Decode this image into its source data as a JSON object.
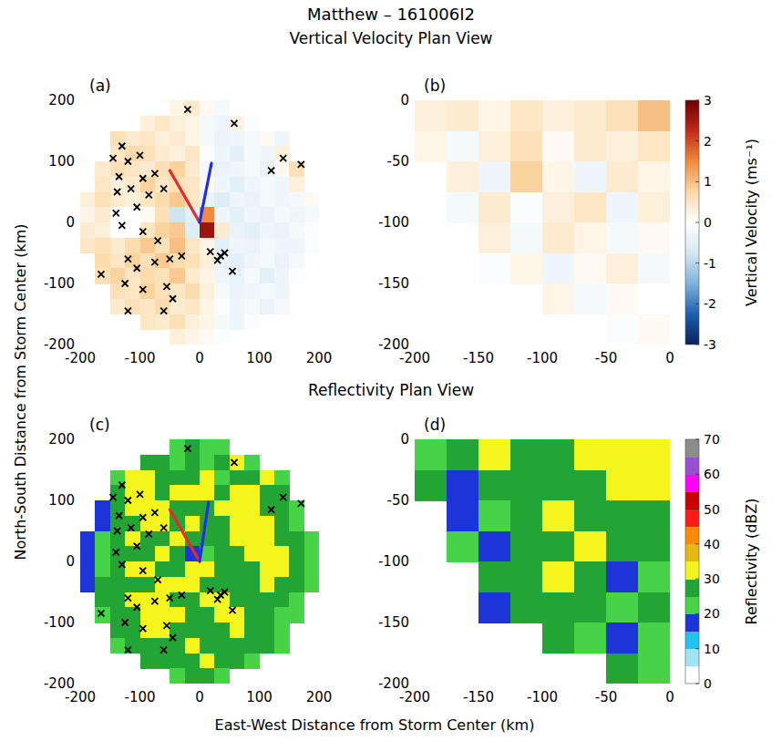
{
  "title": "Matthew – 161006I2",
  "sections": [
    "Vertical Velocity Plan View",
    "Reflectivity Plan View"
  ],
  "xlabel": "East-West Distance from Storm Center (km)",
  "ylabel": "North-South Distance from Storm Center (km)",
  "chart_data": [
    {
      "type": "heatmap",
      "label": "(a)",
      "xlim": [
        -200,
        200
      ],
      "ylim": [
        -200,
        200
      ],
      "xticks": [
        -200,
        -100,
        0,
        100,
        200
      ],
      "yticks": [
        -200,
        -100,
        0,
        100,
        200
      ],
      "x": [
        -187.5,
        -162.5,
        -137.5,
        -112.5,
        -87.5,
        -62.5,
        -37.5,
        -12.5,
        12.5,
        37.5,
        62.5,
        87.5,
        112.5,
        137.5,
        162.5,
        187.5
      ],
      "y": [
        187.5,
        162.5,
        137.5,
        112.5,
        87.5,
        62.5,
        37.5,
        12.5,
        -12.5,
        -37.5,
        -62.5,
        -87.5,
        -112.5,
        -137.5,
        -162.5,
        -187.5
      ],
      "values": [
        [
          null,
          null,
          null,
          null,
          null,
          null,
          0.2,
          0.4,
          0.1,
          -0.2,
          null,
          null,
          null,
          null,
          null,
          null
        ],
        [
          null,
          null,
          null,
          null,
          0.3,
          0.5,
          0.3,
          0.2,
          -0.2,
          -0.3,
          0.2,
          -0.1,
          null,
          null,
          null,
          null
        ],
        [
          null,
          null,
          0.6,
          0.4,
          0.5,
          0.3,
          0.4,
          0.2,
          -0.2,
          -0.4,
          -0.3,
          -0.2,
          0.1,
          -0.3,
          null,
          null
        ],
        [
          null,
          null,
          0.5,
          0.7,
          0.6,
          0.4,
          0.3,
          0.5,
          -0.1,
          -0.3,
          -0.5,
          -0.2,
          -0.3,
          0.3,
          null,
          null
        ],
        [
          null,
          0.4,
          0.6,
          0.5,
          0.4,
          0.6,
          0.8,
          0.4,
          -0.2,
          -0.4,
          -0.3,
          -0.2,
          -0.4,
          0.1,
          0.6,
          null
        ],
        [
          null,
          0.5,
          0.3,
          0.4,
          0.8,
          0.5,
          0.6,
          0.5,
          0.1,
          -0.3,
          -0.5,
          -0.3,
          -0.2,
          -0.3,
          0.3,
          null
        ],
        [
          0.3,
          0.6,
          0.4,
          0.3,
          0.5,
          0.7,
          0.9,
          0.5,
          -0.4,
          -0.6,
          -0.3,
          -0.4,
          -0.2,
          -0.3,
          -0.2,
          0.1
        ],
        [
          0.2,
          0.4,
          0.0,
          0.0,
          0.1,
          0.6,
          -0.8,
          -0.5,
          1.5,
          -0.3,
          -0.5,
          -0.3,
          -0.4,
          -0.2,
          -0.3,
          -0.2
        ],
        [
          0.4,
          0.3,
          0.0,
          0.0,
          0.5,
          0.8,
          0.9,
          -0.6,
          2.6,
          0.4,
          -0.4,
          -0.5,
          -0.3,
          -0.4,
          -0.2,
          -0.1
        ],
        [
          0.5,
          0.6,
          0.4,
          0.7,
          0.9,
          0.6,
          1.0,
          0.5,
          0.2,
          -0.5,
          -0.3,
          -0.4,
          -0.2,
          -0.3,
          -0.3,
          -0.1
        ],
        [
          null,
          0.7,
          0.5,
          0.8,
          0.6,
          0.9,
          0.7,
          0.6,
          0.3,
          -0.4,
          -0.5,
          -0.3,
          -0.2,
          -0.4,
          -0.2,
          null
        ],
        [
          null,
          0.6,
          0.8,
          0.5,
          0.7,
          0.6,
          0.9,
          0.4,
          0.2,
          -0.3,
          -0.4,
          -0.2,
          -0.5,
          -0.3,
          -0.1,
          null
        ],
        [
          null,
          null,
          0.6,
          0.5,
          0.8,
          0.6,
          0.5,
          0.7,
          0.3,
          -0.2,
          -0.4,
          -0.3,
          -0.2,
          -0.3,
          null,
          null
        ],
        [
          null,
          null,
          0.4,
          0.6,
          0.5,
          0.7,
          0.4,
          0.5,
          0.2,
          -0.1,
          -0.3,
          -0.2,
          -0.4,
          -0.2,
          null,
          null
        ],
        [
          null,
          null,
          null,
          null,
          0.5,
          0.4,
          0.6,
          0.3,
          0.2,
          -0.2,
          -0.3,
          -0.1,
          null,
          null,
          null,
          null
        ],
        [
          null,
          null,
          null,
          null,
          null,
          null,
          0.3,
          0.2,
          0.1,
          -0.1,
          null,
          null,
          null,
          null,
          null,
          null
        ]
      ],
      "markers": {
        "marker": "x",
        "color": "#000000",
        "x": [
          -20,
          58,
          -130,
          -145,
          -120,
          -100,
          -135,
          -95,
          -75,
          -138,
          -115,
          -85,
          -60,
          -105,
          -140,
          -130,
          -95,
          -70,
          -120,
          -105,
          -75,
          -50,
          -30,
          -165,
          -125,
          -95,
          -55,
          -45,
          -120,
          -60,
          120,
          140,
          170,
          35,
          30,
          42,
          18,
          55
        ],
        "y": [
          185,
          162,
          125,
          105,
          100,
          110,
          75,
          72,
          80,
          50,
          55,
          45,
          55,
          25,
          15,
          -5,
          -15,
          -30,
          -60,
          -75,
          -65,
          -60,
          -55,
          -85,
          -100,
          -110,
          -105,
          -125,
          -145,
          -145,
          85,
          105,
          95,
          -55,
          -62,
          -50,
          -48,
          -80
        ]
      },
      "vectors": [
        {
          "color": "#e8282d",
          "x": -50,
          "y": 85
        },
        {
          "color": "#2030e0",
          "x": 20,
          "y": 97
        }
      ]
    },
    {
      "type": "heatmap",
      "label": "(b)",
      "xlim": [
        -200,
        0
      ],
      "ylim": [
        -200,
        0
      ],
      "xticks": [
        -200,
        -150,
        -100,
        -50,
        0
      ],
      "yticks": [
        -200,
        -150,
        -100,
        -50,
        0
      ],
      "x": [
        -187.5,
        -162.5,
        -137.5,
        -112.5,
        -87.5,
        -62.5,
        -37.5,
        -12.5
      ],
      "y": [
        -12.5,
        -37.5,
        -62.5,
        -87.5,
        -112.5,
        -137.5,
        -162.5,
        -187.5
      ],
      "values": [
        [
          0.3,
          0.4,
          0.2,
          0.5,
          0.3,
          0.4,
          0.6,
          1.0
        ],
        [
          0.2,
          -0.2,
          0.3,
          0.6,
          0.1,
          0.4,
          0.3,
          0.5
        ],
        [
          null,
          0.3,
          -0.3,
          0.8,
          0.2,
          -0.3,
          0.4,
          0.2
        ],
        [
          null,
          -0.2,
          0.4,
          -0.1,
          0.3,
          0.5,
          -0.3,
          0.3
        ],
        [
          null,
          null,
          0.3,
          -0.2,
          0.4,
          0.2,
          -0.2,
          0.1
        ],
        [
          null,
          null,
          -0.1,
          0.2,
          -0.3,
          0.1,
          0.3,
          -0.2
        ],
        [
          null,
          null,
          null,
          null,
          0.2,
          -0.2,
          0.1,
          0.0
        ],
        [
          null,
          null,
          null,
          null,
          null,
          null,
          -0.1,
          0.1
        ]
      ],
      "colorbar": {
        "type": "continuous",
        "label": "Vertical Velocity (ms⁻¹)",
        "range": [
          -3,
          3
        ],
        "ticks": [
          -3,
          -2,
          -1,
          0,
          1,
          2,
          3
        ],
        "colors": [
          "#0a1f5c",
          "#1f5fae",
          "#7fb2db",
          "#d6e8f4",
          "#ffffff",
          "#fbd9a6",
          "#f08a3c",
          "#c02a1a",
          "#6b0000"
        ]
      }
    },
    {
      "type": "heatmap",
      "label": "(c)",
      "xlim": [
        -200,
        200
      ],
      "ylim": [
        -200,
        200
      ],
      "xticks": [
        -200,
        -100,
        0,
        100,
        200
      ],
      "yticks": [
        -200,
        -100,
        0,
        100,
        200
      ],
      "x": [
        -187.5,
        -162.5,
        -137.5,
        -112.5,
        -87.5,
        -62.5,
        -37.5,
        -12.5,
        12.5,
        37.5,
        62.5,
        87.5,
        112.5,
        137.5,
        162.5,
        187.5
      ],
      "y": [
        187.5,
        162.5,
        137.5,
        112.5,
        87.5,
        62.5,
        37.5,
        12.5,
        -12.5,
        -37.5,
        -62.5,
        -87.5,
        -112.5,
        -137.5,
        -162.5,
        -187.5
      ],
      "values": [
        [
          null,
          null,
          null,
          null,
          null,
          null,
          24,
          28,
          22,
          20,
          null,
          null,
          null,
          null,
          null,
          null
        ],
        [
          null,
          null,
          null,
          null,
          26,
          28,
          24,
          27,
          23,
          26,
          31,
          24,
          null,
          null,
          null,
          null
        ],
        [
          null,
          null,
          22,
          32,
          30,
          26,
          28,
          25,
          31,
          24,
          27,
          26,
          32,
          22,
          null,
          null
        ],
        [
          null,
          null,
          28,
          33,
          31,
          27,
          32,
          30,
          33,
          28,
          32,
          31,
          27,
          25,
          null,
          null
        ],
        [
          null,
          18,
          27,
          31,
          32,
          33,
          28,
          27,
          26,
          32,
          33,
          31,
          29,
          26,
          22,
          null
        ],
        [
          null,
          17,
          25,
          28,
          32,
          31,
          29,
          33,
          26,
          25,
          31,
          33,
          30,
          27,
          24,
          null
        ],
        [
          16,
          20,
          26,
          31,
          27,
          28,
          30,
          26,
          27,
          29,
          32,
          33,
          31,
          29,
          25,
          22
        ],
        [
          15,
          22,
          27,
          28,
          26,
          31,
          26,
          18,
          22,
          26,
          28,
          31,
          33,
          30,
          26,
          23
        ],
        [
          17,
          24,
          26,
          32,
          31,
          28,
          27,
          31,
          33,
          27,
          26,
          29,
          32,
          31,
          27,
          24
        ],
        [
          18,
          26,
          29,
          27,
          28,
          32,
          33,
          31,
          29,
          26,
          25,
          27,
          31,
          28,
          26,
          22
        ],
        [
          null,
          25,
          28,
          31,
          33,
          32,
          27,
          28,
          31,
          32,
          29,
          26,
          28,
          25,
          23,
          null
        ],
        [
          null,
          23,
          27,
          28,
          30,
          31,
          33,
          29,
          26,
          32,
          33,
          28,
          25,
          24,
          22,
          null
        ],
        [
          null,
          null,
          26,
          28,
          32,
          33,
          29,
          27,
          26,
          28,
          31,
          29,
          27,
          24,
          null,
          null
        ],
        [
          null,
          null,
          24,
          27,
          29,
          28,
          27,
          31,
          29,
          26,
          28,
          27,
          25,
          23,
          null,
          null
        ],
        [
          null,
          null,
          null,
          null,
          25,
          27,
          26,
          28,
          30,
          27,
          26,
          24,
          null,
          null,
          null,
          null
        ],
        [
          null,
          null,
          null,
          null,
          null,
          null,
          24,
          26,
          25,
          23,
          null,
          null,
          null,
          null,
          null,
          null
        ]
      ],
      "markers": {
        "marker": "x",
        "color": "#000000",
        "x": [
          -20,
          58,
          -130,
          -145,
          -120,
          -100,
          -135,
          -95,
          -75,
          -138,
          -115,
          -85,
          -60,
          -105,
          -140,
          -130,
          -95,
          -70,
          -120,
          -105,
          -75,
          -50,
          -30,
          -165,
          -125,
          -95,
          -55,
          -45,
          -120,
          -60,
          120,
          140,
          170,
          35,
          30,
          42,
          18,
          55
        ],
        "y": [
          185,
          162,
          125,
          105,
          100,
          110,
          75,
          72,
          80,
          50,
          55,
          45,
          55,
          25,
          15,
          -5,
          -15,
          -30,
          -60,
          -75,
          -65,
          -60,
          -55,
          -85,
          -100,
          -110,
          -105,
          -125,
          -145,
          -145,
          85,
          105,
          95,
          -55,
          -62,
          -50,
          -48,
          -80
        ]
      },
      "vectors": [
        {
          "color": "#e8282d",
          "x": -50,
          "y": 85
        },
        {
          "color": "#2030e0",
          "x": 15,
          "y": 97
        }
      ]
    },
    {
      "type": "heatmap",
      "label": "(d)",
      "xlim": [
        -200,
        0
      ],
      "ylim": [
        -200,
        0
      ],
      "xticks": [
        -200,
        -150,
        -100,
        -50,
        0
      ],
      "yticks": [
        -200,
        -150,
        -100,
        -50,
        0
      ],
      "x": [
        -187.5,
        -162.5,
        -137.5,
        -112.5,
        -87.5,
        -62.5,
        -37.5,
        -12.5
      ],
      "y": [
        -12.5,
        -37.5,
        -62.5,
        -87.5,
        -112.5,
        -137.5,
        -162.5,
        -187.5
      ],
      "values": [
        [
          24,
          26,
          31,
          27,
          28,
          33,
          31,
          34
        ],
        [
          27,
          17,
          25,
          29,
          26,
          28,
          32,
          33
        ],
        [
          null,
          16,
          24,
          28,
          31,
          27,
          26,
          29
        ],
        [
          null,
          22,
          18,
          26,
          27,
          32,
          28,
          25
        ],
        [
          null,
          null,
          26,
          27,
          31,
          26,
          17,
          24
        ],
        [
          null,
          null,
          17,
          25,
          26,
          28,
          24,
          27
        ],
        [
          null,
          null,
          null,
          null,
          25,
          22,
          16,
          24
        ],
        [
          null,
          null,
          null,
          null,
          null,
          null,
          26,
          24
        ]
      ],
      "colorbar": {
        "type": "discrete",
        "label": "Reflectivity (dBZ)",
        "range": [
          0,
          70
        ],
        "ticks": [
          0,
          10,
          20,
          30,
          40,
          50,
          60,
          70
        ],
        "colors": [
          "#ffffff",
          "#9fe6f5",
          "#20c4ee",
          "#1d35d8",
          "#47d347",
          "#23a535",
          "#f5f51e",
          "#e6b814",
          "#ff8c00",
          "#ff1a1a",
          "#c80000",
          "#ff00ff",
          "#9a4fd0",
          "#8c8c8c"
        ]
      }
    }
  ]
}
